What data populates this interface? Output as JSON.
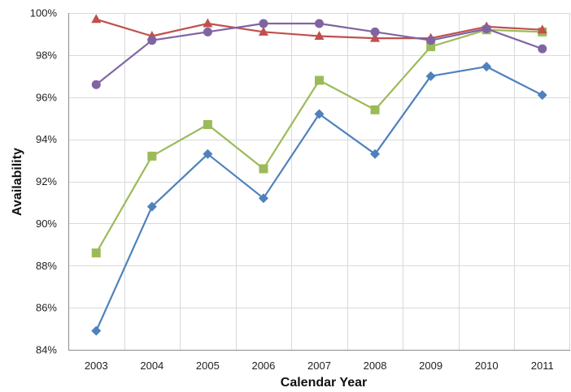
{
  "chart_data": {
    "type": "line",
    "title": "",
    "xlabel": "Calendar Year",
    "ylabel": "Availability",
    "x": [
      "2003",
      "2004",
      "2005",
      "2006",
      "2007",
      "2008",
      "2009",
      "2010",
      "2011"
    ],
    "ylim": [
      84,
      100
    ],
    "yticks": [
      84,
      86,
      88,
      90,
      92,
      94,
      96,
      98,
      100
    ],
    "ytick_labels": [
      "84%",
      "86%",
      "88%",
      "90%",
      "92%",
      "94%",
      "96%",
      "98%",
      "100%"
    ],
    "grid": true,
    "legend": "none",
    "series": [
      {
        "color": "#4f81bd",
        "marker": "diamond",
        "values": [
          84.9,
          90.8,
          93.3,
          91.2,
          95.2,
          93.3,
          97.0,
          97.45,
          96.1
        ]
      },
      {
        "color": "#9bbb59",
        "marker": "square",
        "values": [
          88.6,
          93.2,
          94.7,
          92.6,
          96.8,
          95.4,
          98.4,
          99.2,
          99.1
        ]
      },
      {
        "color": "#c0504d",
        "marker": "triangle",
        "values": [
          99.7,
          98.9,
          99.5,
          99.1,
          98.9,
          98.8,
          98.8,
          99.35,
          99.2
        ]
      },
      {
        "color": "#8064a2",
        "marker": "circle",
        "values": [
          96.6,
          98.7,
          99.1,
          99.5,
          99.5,
          99.1,
          98.7,
          99.25,
          98.3
        ]
      }
    ]
  }
}
